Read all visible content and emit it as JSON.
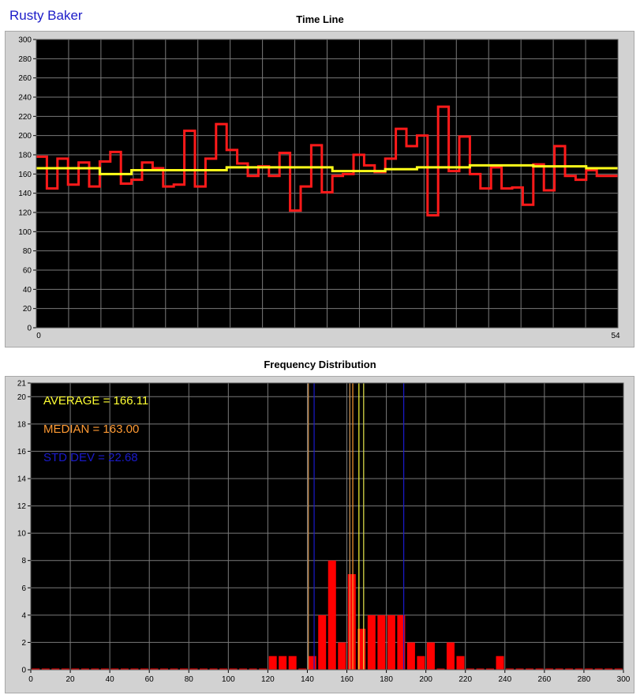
{
  "app": {
    "title": "Rusty Baker"
  },
  "colors": {
    "plot_bg": "#000000",
    "grid": "#7a7a7a",
    "frame": "#d2d2d2",
    "timeline_series": "#ff1a1a",
    "running_average": "#ffff1a",
    "bars": "#ff0000",
    "average_line": "#ffff33",
    "median_line": "#ff9a33",
    "std_line": "#1a1acc"
  },
  "chart_data": [
    {
      "type": "line",
      "title": "Time Line",
      "x": [
        0,
        1,
        2,
        3,
        4,
        5,
        6,
        7,
        8,
        9,
        10,
        11,
        12,
        13,
        14,
        15,
        16,
        17,
        18,
        19,
        20,
        21,
        22,
        23,
        24,
        25,
        26,
        27,
        28,
        29,
        30,
        31,
        32,
        33,
        34,
        35,
        36,
        37,
        38,
        39,
        40,
        41,
        42,
        43,
        44,
        45,
        46,
        47,
        48,
        49,
        50,
        51,
        52,
        53,
        54
      ],
      "xlim": [
        0,
        54
      ],
      "ylim": [
        0,
        300
      ],
      "x_tick_labels": [
        "0",
        "54"
      ],
      "y_ticks": [
        0,
        20,
        40,
        60,
        80,
        100,
        120,
        140,
        160,
        180,
        200,
        220,
        240,
        260,
        280,
        300
      ],
      "grid": true,
      "series": [
        {
          "color": "#ff1a1a",
          "step": true,
          "values": [
            178,
            145,
            176,
            149,
            172,
            147,
            173,
            183,
            150,
            154,
            172,
            166,
            147,
            149,
            205,
            147,
            176,
            212,
            185,
            171,
            158,
            168,
            158,
            182,
            122,
            147,
            190,
            141,
            158,
            160,
            180,
            169,
            162,
            176,
            207,
            189,
            200,
            117,
            230,
            163,
            199,
            160,
            145,
            167,
            145,
            146,
            128,
            170,
            143,
            189,
            158,
            154,
            164,
            158,
            158
          ]
        },
        {
          "color": "#ffff1a",
          "step": true,
          "values": [
            166,
            166,
            166,
            166,
            166,
            166,
            160,
            160,
            160,
            164,
            164,
            164,
            164,
            164,
            164,
            164,
            164,
            164,
            167,
            167,
            167,
            167,
            167,
            167,
            167,
            167,
            167,
            167,
            163,
            163,
            163,
            163,
            163,
            165,
            165,
            165,
            167,
            167,
            167,
            167,
            167,
            169,
            169,
            169,
            169,
            169,
            169,
            168,
            168,
            168,
            168,
            168,
            166,
            166,
            166
          ]
        }
      ]
    },
    {
      "type": "bar",
      "title": "Frequency Distribution",
      "bin_width": 5,
      "x": [
        0,
        5,
        10,
        15,
        20,
        25,
        30,
        35,
        40,
        45,
        50,
        55,
        60,
        65,
        70,
        75,
        80,
        85,
        90,
        95,
        100,
        105,
        110,
        115,
        120,
        125,
        130,
        135,
        140,
        145,
        150,
        155,
        160,
        165,
        170,
        175,
        180,
        185,
        190,
        195,
        200,
        205,
        210,
        215,
        220,
        225,
        230,
        235,
        240,
        245,
        250,
        255,
        260,
        265,
        270,
        275,
        280,
        285,
        290,
        295
      ],
      "values": [
        0,
        0,
        0,
        0,
        0,
        0,
        0,
        0,
        0,
        0,
        0,
        0,
        0,
        0,
        0,
        0,
        0,
        0,
        0,
        0,
        0,
        0,
        0,
        0,
        1,
        1,
        1,
        0,
        1,
        4,
        8,
        2,
        7,
        3,
        4,
        4,
        4,
        4,
        2,
        1,
        2,
        0,
        2,
        1,
        0,
        0,
        0,
        1,
        0,
        0,
        0,
        0,
        0,
        0,
        0,
        0,
        0,
        0,
        0,
        0
      ],
      "xlim": [
        0,
        300
      ],
      "ylim": [
        0,
        21
      ],
      "x_ticks": [
        0,
        20,
        40,
        60,
        80,
        100,
        120,
        140,
        160,
        180,
        200,
        220,
        240,
        260,
        280,
        300
      ],
      "y_ticks": [
        0,
        2,
        4,
        6,
        8,
        10,
        12,
        14,
        16,
        18,
        20,
        21
      ],
      "grid": true,
      "vertical_lines": [
        {
          "x": 166.11,
          "color": "#ffff33"
        },
        {
          "x": 163.0,
          "color": "#ff9a33"
        },
        {
          "x": 143.43,
          "color": "#1a1acc"
        },
        {
          "x": 188.79,
          "color": "#1a1acc"
        },
        {
          "x": 140.5,
          "color": "#d99a55"
        },
        {
          "x": 161.5,
          "color": "#d99a55"
        },
        {
          "x": 168.5,
          "color": "#e6e64d"
        }
      ],
      "annotations": [
        {
          "text": "AVERAGE = 166.11",
          "color": "#ffff33"
        },
        {
          "text": "MEDIAN = 163.00",
          "color": "#ff9a33"
        },
        {
          "text": "STD DEV = 22.68",
          "color": "#1a1acc"
        }
      ]
    }
  ]
}
